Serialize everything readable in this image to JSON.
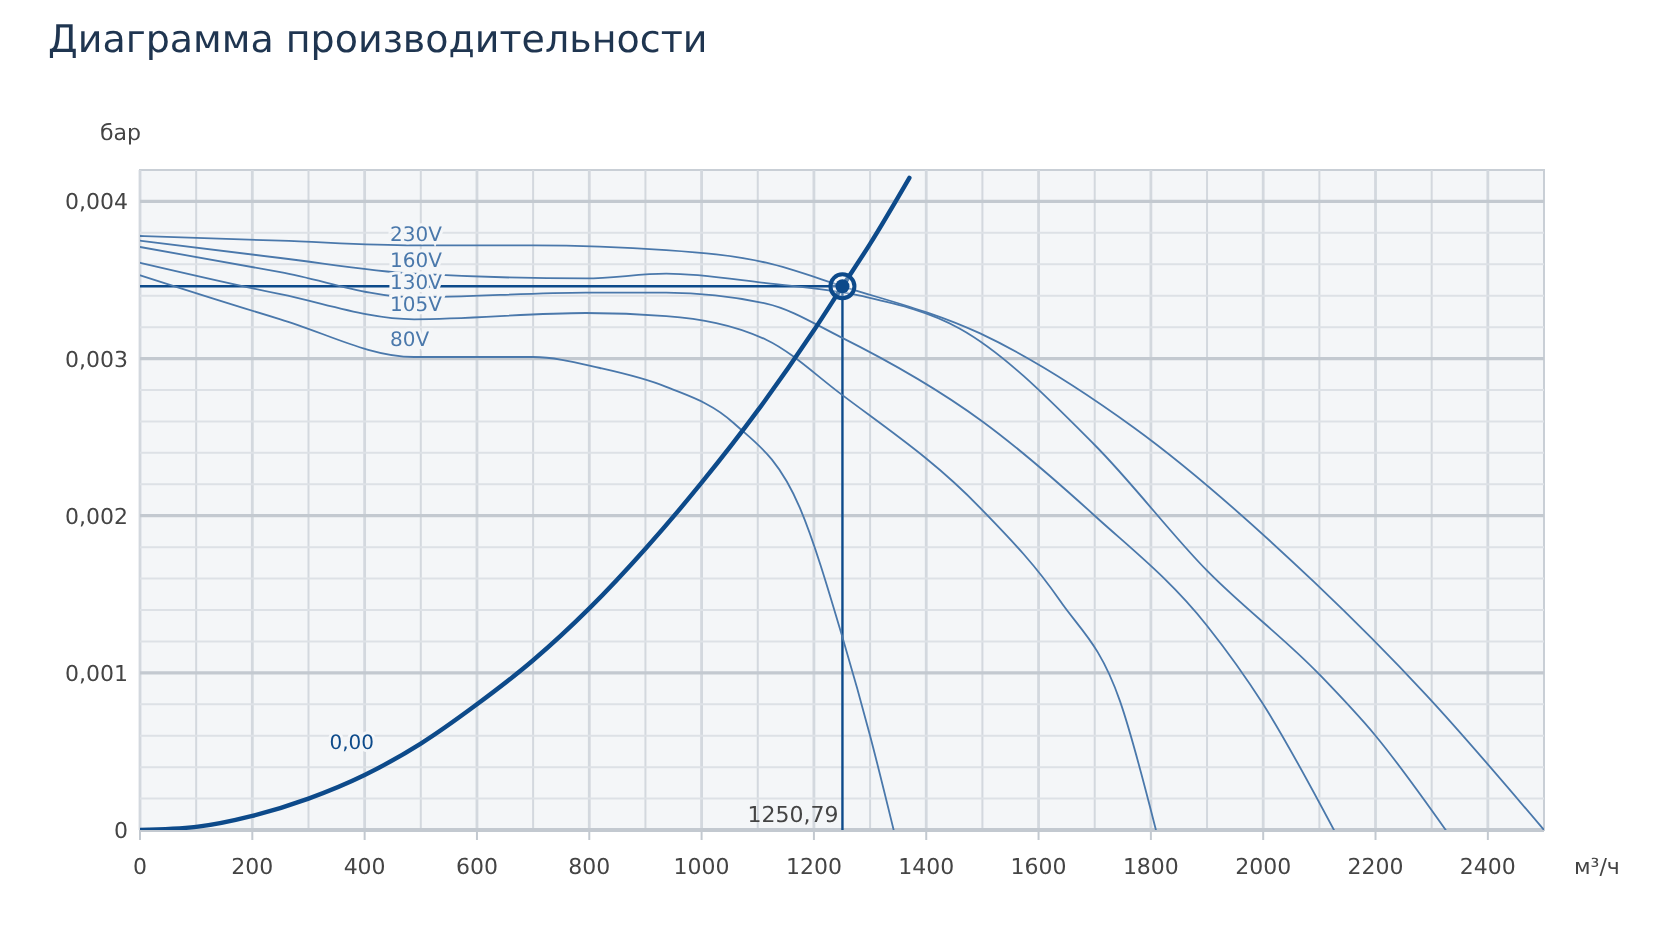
{
  "chart_data": {
    "type": "line",
    "title": "Диаграмма производительности",
    "xlabel": "м³/ч",
    "ylabel": "бар",
    "xlim": [
      0,
      2500
    ],
    "ylim": [
      0,
      0.0042
    ],
    "xticks": [
      0,
      {
        "value": 100,
        "label": null
      },
      200,
      {
        "value": 300,
        "label": null
      },
      400,
      {
        "value": 500,
        "label": null
      },
      600,
      {
        "value": 700,
        "label": null
      },
      800,
      {
        "value": 900,
        "label": null
      },
      1000,
      {
        "value": 1100,
        "label": null
      },
      1200,
      {
        "value": 1300,
        "label": null
      },
      1400,
      {
        "value": 1500,
        "label": null
      },
      1600,
      {
        "value": 1700,
        "label": null
      },
      1800,
      {
        "value": 1900,
        "label": null
      },
      2000,
      {
        "value": 2100,
        "label": null
      },
      2200,
      {
        "value": 2300,
        "label": null
      },
      2400
    ],
    "yticks": [
      0,
      {
        "value": 0.0002,
        "label": null
      },
      {
        "value": 0.0004,
        "label": null
      },
      {
        "value": 0.0006,
        "label": null
      },
      {
        "value": 0.0008,
        "label": null
      },
      {
        "value": 0.001,
        "label": "0,001"
      },
      {
        "value": 0.0012,
        "label": null
      },
      {
        "value": 0.0014,
        "label": null
      },
      {
        "value": 0.0016,
        "label": null
      },
      {
        "value": 0.0018,
        "label": null
      },
      {
        "value": 0.002,
        "label": "0,002"
      },
      {
        "value": 0.0022,
        "label": null
      },
      {
        "value": 0.0024,
        "label": null
      },
      {
        "value": 0.0026,
        "label": null
      },
      {
        "value": 0.0028,
        "label": null
      },
      {
        "value": 0.003,
        "label": "0,003"
      },
      {
        "value": 0.0032,
        "label": null
      },
      {
        "value": 0.0034,
        "label": null
      },
      {
        "value": 0.0036,
        "label": null
      },
      {
        "value": 0.0038,
        "label": null
      },
      {
        "value": 0.004,
        "label": "0,004"
      }
    ],
    "grid": true,
    "line_style": "solid",
    "marker": "none",
    "series": [
      {
        "name": "130V",
        "color": "#4a78ab",
        "x": [
          0,
          250,
          488,
          794,
          937,
          1115,
          1246,
          1500,
          1700,
          1900,
          2000,
          2126
        ],
        "values": [
          0.00371,
          0.00355,
          0.00339,
          0.00342,
          0.00342,
          0.00335,
          0.00314,
          0.0026,
          0.002,
          0.0013,
          0.0008,
          0
        ]
      },
      {
        "name": "230V",
        "color": "#4a78ab",
        "x": [
          0,
          250,
          488,
          700,
          937,
          1115,
          1250.79,
          1496,
          1770,
          2090,
          2290,
          2500
        ],
        "values": [
          0.00378,
          0.00375,
          0.00372,
          0.00372,
          0.00369,
          0.00361,
          0.00346,
          0.00316,
          0.00256,
          0.00158,
          0.00086,
          0
        ]
      },
      {
        "name": "80V",
        "color": "#4a78ab",
        "x": [
          0,
          250,
          488,
          700,
          819,
          937,
          1057,
          1175,
          1253,
          1300,
          1342
        ],
        "values": [
          0.00353,
          0.00325,
          0.00301,
          0.00301,
          0.00294,
          0.00282,
          0.00259,
          0.00205,
          0.0012,
          0.0006,
          0
        ]
      },
      {
        "name": "160V",
        "color": "#4a78ab",
        "x": [
          0,
          250,
          488,
          794,
          937,
          1115,
          1282,
          1460,
          1700,
          1900,
          2100,
          2200,
          2325
        ],
        "values": [
          0.00375,
          0.00364,
          0.00354,
          0.00351,
          0.00354,
          0.00348,
          0.0034,
          0.00319,
          0.00245,
          0.00165,
          0.00099,
          0.0006,
          0
        ]
      },
      {
        "name": "105V",
        "color": "#4a78ab",
        "x": [
          0,
          250,
          488,
          794,
          937,
          1115,
          1246,
          1496,
          1638,
          1745,
          1809
        ],
        "values": [
          0.00361,
          0.00341,
          0.00325,
          0.00329,
          0.00327,
          0.00312,
          0.00278,
          0.00205,
          0.00146,
          0.00082,
          0
        ]
      },
      {
        "name": "0,00",
        "color": "#0d4a8a",
        "x": [
          0,
          100,
          200,
          300,
          400,
          500,
          600,
          700,
          800,
          900,
          1000,
          1100,
          1200,
          1250.79,
          1300,
          1370
        ],
        "values": [
          0,
          2e-05,
          9e-05,
          0.0002,
          0.00035,
          0.00055,
          0.0008,
          0.00108,
          0.00141,
          0.00179,
          0.00221,
          0.00267,
          0.00318,
          0.00346,
          0.00373,
          0.00415
        ]
      },
      {
        "type": "scatter",
        "marker": "circle",
        "color": "#0d4a8a",
        "x": [
          1250.79
        ],
        "values": [
          0.00346
        ]
      }
    ],
    "ref_lines": [
      {
        "axis": "x",
        "value": 1250.79,
        "label": "1250,79",
        "color": "#0d4a8a"
      },
      {
        "axis": "y",
        "value": 0.00346,
        "label": null,
        "color": "#0d4a8a"
      }
    ]
  }
}
